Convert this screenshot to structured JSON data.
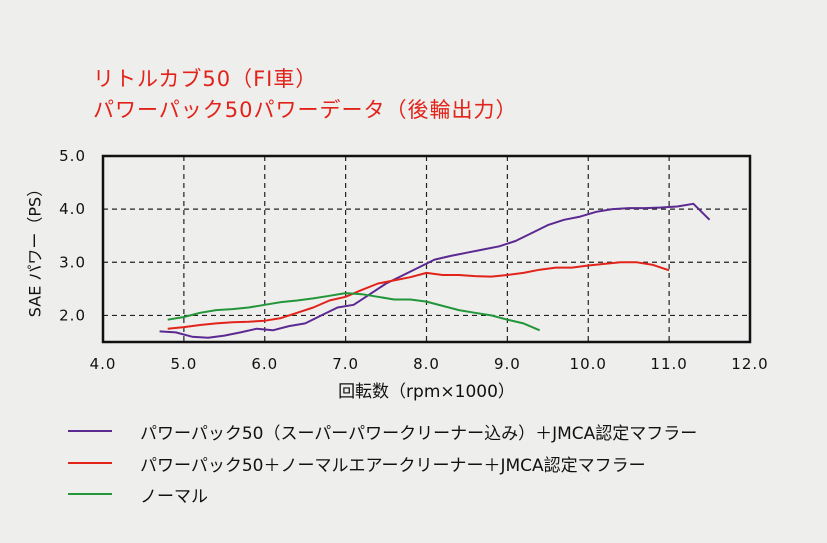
{
  "title_lines": [
    "リトルカブ50（FI車）",
    "パワーパック50パワーデータ（後輪出力）"
  ],
  "chart_data": {
    "type": "line",
    "xlabel": "回転数（rpm×1000）",
    "ylabel": "SAE パワー（PS）",
    "xlim": [
      4.0,
      12.0
    ],
    "ylim": [
      1.5,
      5.0
    ],
    "x_ticks": [
      "4.0",
      "5.0",
      "6.0",
      "7.0",
      "8.0",
      "9.0",
      "10.0",
      "11.0",
      "12.0"
    ],
    "y_ticks": [
      {
        "value": 2.0,
        "label": "2.0"
      },
      {
        "value": 3.0,
        "label": "3.0"
      },
      {
        "value": 4.0,
        "label": "4.0"
      },
      {
        "value": 5.0,
        "label": "5.0"
      }
    ],
    "grid": true,
    "series": [
      {
        "name": "パワーパック50（スーパーパワークリーナー込み）＋JMCA認定マフラー",
        "color": "#5b2a91",
        "x": [
          4.7,
          4.9,
          5.1,
          5.3,
          5.5,
          5.7,
          5.9,
          6.1,
          6.3,
          6.5,
          6.7,
          6.9,
          7.1,
          7.3,
          7.5,
          7.7,
          7.9,
          8.1,
          8.3,
          8.5,
          8.7,
          8.9,
          9.1,
          9.3,
          9.5,
          9.7,
          9.9,
          10.1,
          10.3,
          10.5,
          10.7,
          10.9,
          11.1,
          11.3,
          11.5
        ],
        "y": [
          1.7,
          1.68,
          1.6,
          1.58,
          1.62,
          1.68,
          1.75,
          1.72,
          1.8,
          1.85,
          2.0,
          2.15,
          2.2,
          2.4,
          2.6,
          2.75,
          2.9,
          3.05,
          3.12,
          3.18,
          3.24,
          3.3,
          3.4,
          3.55,
          3.7,
          3.8,
          3.86,
          3.95,
          4.0,
          4.02,
          4.02,
          4.03,
          4.05,
          4.1,
          3.8
        ]
      },
      {
        "name": "パワーパック50＋ノーマルエアークリーナー＋JMCA認定マフラー",
        "color": "#e2231a",
        "x": [
          4.8,
          5.0,
          5.2,
          5.4,
          5.6,
          5.8,
          6.0,
          6.2,
          6.4,
          6.6,
          6.8,
          7.0,
          7.2,
          7.4,
          7.6,
          7.8,
          8.0,
          8.2,
          8.4,
          8.6,
          8.8,
          9.0,
          9.2,
          9.4,
          9.6,
          9.8,
          10.0,
          10.2,
          10.4,
          10.6,
          10.8,
          11.0
        ],
        "y": [
          1.75,
          1.78,
          1.82,
          1.85,
          1.87,
          1.88,
          1.9,
          1.95,
          2.05,
          2.15,
          2.28,
          2.35,
          2.48,
          2.6,
          2.66,
          2.72,
          2.8,
          2.76,
          2.76,
          2.74,
          2.73,
          2.76,
          2.8,
          2.86,
          2.9,
          2.9,
          2.94,
          2.97,
          3.0,
          3.0,
          2.95,
          2.85
        ]
      },
      {
        "name": "ノーマル",
        "color": "#23963a",
        "x": [
          4.8,
          5.0,
          5.2,
          5.4,
          5.6,
          5.8,
          6.0,
          6.2,
          6.4,
          6.6,
          6.8,
          7.0,
          7.2,
          7.4,
          7.6,
          7.8,
          8.0,
          8.2,
          8.4,
          8.6,
          8.8,
          9.0,
          9.2,
          9.4
        ],
        "y": [
          1.92,
          1.97,
          2.05,
          2.1,
          2.12,
          2.15,
          2.2,
          2.25,
          2.28,
          2.32,
          2.37,
          2.42,
          2.4,
          2.35,
          2.3,
          2.3,
          2.26,
          2.18,
          2.1,
          2.05,
          2.0,
          1.92,
          1.85,
          1.72
        ]
      }
    ]
  }
}
